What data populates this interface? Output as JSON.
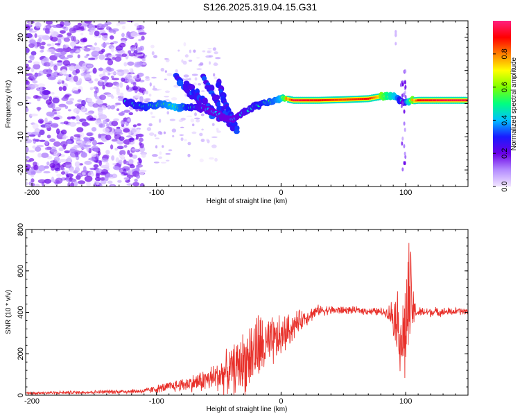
{
  "title": "S126.2025.319.04.15.G31",
  "chart_data": [
    {
      "type": "heatmap",
      "xlabel": "Height of straight line (km)",
      "ylabel": "Frequency (Hz)",
      "xlim": [
        -205,
        150
      ],
      "ylim": [
        -25,
        25
      ],
      "xticks": [
        -200,
        -100,
        0,
        100
      ],
      "yticks": [
        -20,
        -10,
        0,
        10,
        20
      ],
      "colorbar": {
        "label": "Normalized spectral amplitude",
        "range": [
          0,
          1
        ],
        "ticks": [
          "0.0",
          "0.2",
          "0.4",
          "0.6",
          "0.8"
        ],
        "tick_values": [
          0.0,
          0.2,
          0.4,
          0.6,
          0.8
        ],
        "colors": [
          "#f2e6ff",
          "#b48cff",
          "#6a00e6",
          "#1a1aff",
          "#00bfff",
          "#00ff80",
          "#80ff00",
          "#ffff00",
          "#ff8000",
          "#ff0000",
          "#ff2080"
        ]
      },
      "ridge": [
        {
          "x": -125,
          "f": 0.5,
          "amp": 0.35
        },
        {
          "x": -110,
          "f": -1.0,
          "amp": 0.4
        },
        {
          "x": -95,
          "f": 0.0,
          "amp": 0.45
        },
        {
          "x": -85,
          "f": -1.0,
          "amp": 0.5
        },
        {
          "x": -75,
          "f": -1.0,
          "amp": 0.4
        },
        {
          "x": -60,
          "f": -1.5,
          "amp": 0.3
        },
        {
          "x": -40,
          "f": -5.0,
          "amp": 0.3
        },
        {
          "x": -25,
          "f": -1.5,
          "amp": 0.35
        },
        {
          "x": -15,
          "f": 0.0,
          "amp": 0.4
        },
        {
          "x": -5,
          "f": 1.0,
          "amp": 0.45
        },
        {
          "x": 0,
          "f": 1.8,
          "amp": 0.5
        },
        {
          "x": 10,
          "f": 1.0,
          "amp": 0.95
        },
        {
          "x": 30,
          "f": 1.0,
          "amp": 0.9
        },
        {
          "x": 50,
          "f": 1.2,
          "amp": 0.85
        },
        {
          "x": 70,
          "f": 1.5,
          "amp": 0.9
        },
        {
          "x": 85,
          "f": 2.5,
          "amp": 0.6
        },
        {
          "x": 92,
          "f": 2.0,
          "amp": 0.5
        },
        {
          "x": 98,
          "f": 0.5,
          "amp": 0.3
        },
        {
          "x": 110,
          "f": 1.0,
          "amp": 0.9
        },
        {
          "x": 130,
          "f": 1.0,
          "amp": 0.95
        },
        {
          "x": 150,
          "f": 1.0,
          "amp": 0.95
        }
      ],
      "diagonal_streaks": [
        {
          "x0": -85,
          "f0": 8,
          "x1": -55,
          "f1": -4
        },
        {
          "x0": -75,
          "f0": 6,
          "x1": -45,
          "f1": -6
        },
        {
          "x0": -62,
          "f0": 8,
          "x1": -38,
          "f1": -8
        },
        {
          "x0": -50,
          "f0": 6,
          "x1": -35,
          "f1": -9
        }
      ]
    },
    {
      "type": "line",
      "xlabel": "Height of straight line (km)",
      "ylabel": "SNR (10 * v/v)",
      "xlim": [
        -205,
        150
      ],
      "ylim": [
        0,
        800
      ],
      "xticks": [
        -200,
        -100,
        0,
        100
      ],
      "yticks": [
        0,
        200,
        400,
        600,
        800
      ],
      "series": [
        {
          "name": "SNR",
          "color": "#e8302a",
          "envelope": [
            {
              "x": -205,
              "base": 10,
              "noise": 8
            },
            {
              "x": -150,
              "base": 15,
              "noise": 10
            },
            {
              "x": -110,
              "base": 20,
              "noise": 15
            },
            {
              "x": -90,
              "base": 40,
              "noise": 30
            },
            {
              "x": -70,
              "base": 60,
              "noise": 50
            },
            {
              "x": -55,
              "base": 80,
              "noise": 80
            },
            {
              "x": -40,
              "base": 120,
              "noise": 130
            },
            {
              "x": -30,
              "base": 160,
              "noise": 180
            },
            {
              "x": -20,
              "base": 220,
              "noise": 220
            },
            {
              "x": -10,
              "base": 240,
              "noise": 160
            },
            {
              "x": 0,
              "base": 280,
              "noise": 120
            },
            {
              "x": 15,
              "base": 360,
              "noise": 60
            },
            {
              "x": 30,
              "base": 410,
              "noise": 30
            },
            {
              "x": 60,
              "base": 410,
              "noise": 20
            },
            {
              "x": 85,
              "base": 400,
              "noise": 25
            },
            {
              "x": 92,
              "base": 380,
              "noise": 150
            },
            {
              "x": 98,
              "base": 250,
              "noise": 300
            },
            {
              "x": 103,
              "base": 450,
              "noise": 380
            },
            {
              "x": 108,
              "base": 400,
              "noise": 30
            },
            {
              "x": 150,
              "base": 405,
              "noise": 20
            }
          ]
        }
      ]
    }
  ]
}
